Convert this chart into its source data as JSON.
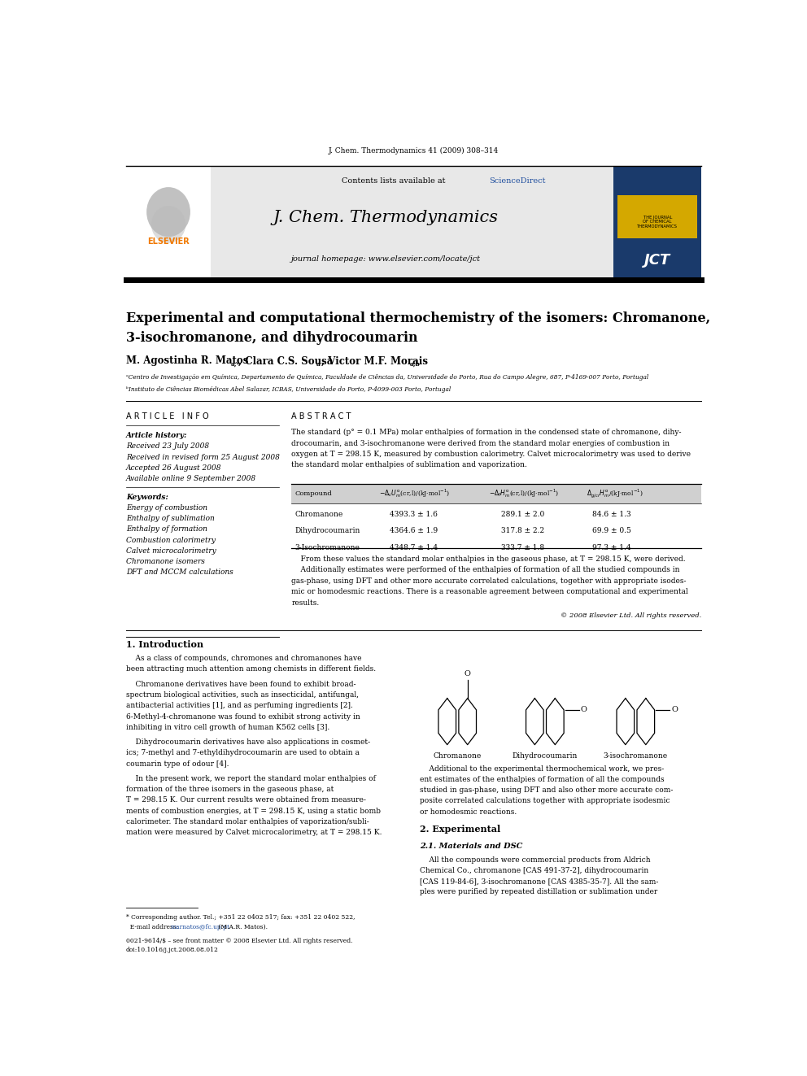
{
  "page_width": 9.92,
  "page_height": 13.23,
  "bg_color": "#ffffff",
  "journal_ref": "J. Chem. Thermodynamics 41 (2009) 308–314",
  "header_bg": "#e8e8e8",
  "sciencedirect_color": "#1f4e9e",
  "journal_name": "J. Chem. Thermodynamics",
  "journal_url": "journal homepage: www.elsevier.com/locate/jct",
  "title_line1": "Experimental and computational thermochemistry of the isomers: Chromanone,",
  "title_line2": "3-isochromanone, and dihydrocoumarin",
  "affil_a": "ᵃCentro de Investigação em Química, Departamento de Química, Faculdade de Ciências da, Universidade do Porto, Rua do Campo Alegre, 687, P-4169-007 Porto, Portugal",
  "affil_b": "ᵇInstituto de Ciências Biomédicas Abel Salazar, ICBAS, Universidade do Porto, P-4099-003 Porto, Portugal",
  "article_history_label": "Article history:",
  "received": "Received 23 July 2008",
  "received_revised": "Received in revised form 25 August 2008",
  "accepted": "Accepted 26 August 2008",
  "available": "Available online 9 September 2008",
  "keywords_label": "Keywords:",
  "keywords": [
    "Energy of combustion",
    "Enthalpy of sublimation",
    "Enthalpy of formation",
    "Combustion calorimetry",
    "Calvet microcalorimetry",
    "Chromanone isomers",
    "DFT and MCCM calculations"
  ],
  "copyright": "© 2008 Elsevier Ltd. All rights reserved.",
  "intro_title": "1. Introduction",
  "section2_title": "2. Experimental",
  "section21_title": "2.1. Materials and DSC",
  "footnote_corr": "* Corresponding author. Tel.; +351 22 0402 517; fax: +351 22 0402 522,",
  "footnote_email_pre": "  E-mail address: ",
  "footnote_email_link": "marnatos@fc.up.pt",
  "footnote_email_post": " (M.A.R. Matos).",
  "footnote_issn": "0021-9614/$ – see front matter © 2008 Elsevier Ltd. All rights reserved.",
  "footnote_doi": "doi:10.1016/j.jct.2008.08.012",
  "molecule_labels": [
    "Chromanone",
    "Dihydrocoumarin",
    "3-isochromanone"
  ],
  "elsevier_color": "#f07800",
  "link_color": "#1f4e9e"
}
